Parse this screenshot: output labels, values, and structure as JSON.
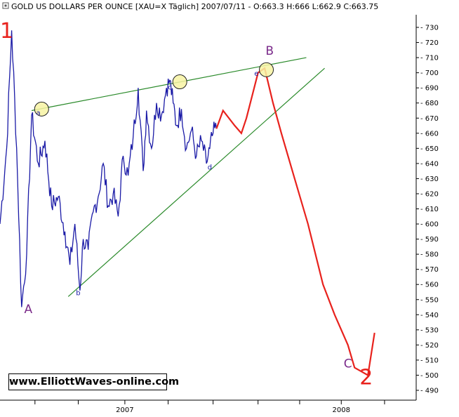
{
  "chart_data": {
    "type": "line",
    "title": "GOLD US DOLLARS PER OUNCE [XAU=X  Täglich] 2007/07/11 - O:663.3 H:666 L:662.9 C:663.75",
    "ylim": [
      485,
      737
    ],
    "yticks": [
      490,
      500,
      510,
      520,
      530,
      540,
      550,
      560,
      570,
      580,
      590,
      600,
      610,
      620,
      630,
      640,
      650,
      660,
      670,
      680,
      690,
      700,
      710,
      720,
      730
    ],
    "xlim": [
      0,
      25
    ],
    "xtick_positions": [
      2.1,
      4.7,
      7.5,
      10.1,
      12.8,
      15.5,
      18.0,
      20.5,
      23.1
    ],
    "xtick_labels": [
      {
        "x": 7.5,
        "text": "2007"
      },
      {
        "x": 20.5,
        "text": "2008"
      }
    ],
    "series": [
      {
        "color": "#1a1aa6",
        "x": [
          0,
          0.4,
          0.7,
          1.0,
          1.3,
          1.6,
          1.9,
          2.3,
          2.7,
          3.1,
          3.5,
          3.9,
          4.2,
          4.5,
          4.8,
          5.0,
          5.3,
          5.6,
          5.9,
          6.2,
          6.5,
          6.8,
          7.1,
          7.4,
          7.7,
          8.0,
          8.3,
          8.6,
          8.8,
          9.1,
          9.4,
          9.7,
          10.0,
          10.2,
          10.4,
          10.6,
          10.9,
          11.2,
          11.5,
          11.8,
          12.1,
          12.4,
          12.6,
          12.8,
          13.0
        ],
        "y": [
          600,
          650,
          728,
          650,
          545,
          580,
          672,
          640,
          655,
          612,
          618,
          595,
          573,
          600,
          556,
          590,
          583,
          608,
          618,
          640,
          612,
          620,
          605,
          645,
          632,
          658,
          690,
          635,
          675,
          650,
          680,
          672,
          690,
          695,
          680,
          665,
          676,
          650,
          662,
          645,
          655,
          640,
          650,
          660,
          663
        ]
      }
    ],
    "projection": {
      "color": "#e8221d",
      "x": [
        13.0,
        13.4,
        14.1,
        14.5,
        14.8,
        15.5,
        15.9,
        16.4,
        16.9,
        17.7,
        18.5,
        19.4,
        20.1,
        20.9,
        21.3,
        22.1,
        22.5
      ],
      "y": [
        663,
        675,
        665,
        660,
        670,
        700,
        703,
        680,
        660,
        630,
        600,
        560,
        540,
        520,
        505,
        500,
        528
      ]
    },
    "trendlines": [
      {
        "name": "upper",
        "color": "#2a8a2a",
        "x": [
          1.9,
          18.4
        ],
        "y": [
          675,
          710
        ]
      },
      {
        "name": "lower",
        "color": "#2a8a2a",
        "x": [
          4.1,
          19.5
        ],
        "y": [
          552,
          703
        ]
      }
    ],
    "markers": [
      {
        "x": 2.5,
        "y": 676
      },
      {
        "x": 10.8,
        "y": 694
      },
      {
        "x": 16.0,
        "y": 702
      }
    ],
    "point_labels": [
      {
        "text": "a",
        "x": 2.3,
        "y": 672
      },
      {
        "text": "b",
        "x": 4.7,
        "y": 553
      },
      {
        "text": "c",
        "x": 10.2,
        "y": 689
      },
      {
        "text": "d",
        "x": 12.6,
        "y": 636
      },
      {
        "text": "e",
        "x": 15.4,
        "y": 698
      }
    ],
    "wave_labels": [
      {
        "text": "1",
        "x": 0.4,
        "y": 723,
        "color": "#e8221d",
        "size": "big"
      },
      {
        "text": "A",
        "x": 1.7,
        "y": 541,
        "color": "#7a2a8a",
        "size": "mid"
      },
      {
        "text": "B",
        "x": 16.2,
        "y": 712,
        "color": "#7a2a8a",
        "size": "mid"
      },
      {
        "text": "C",
        "x": 20.9,
        "y": 505,
        "color": "#7a2a8a",
        "size": "mid"
      },
      {
        "text": "2",
        "x": 22.0,
        "y": 494,
        "color": "#e8221d",
        "size": "big"
      }
    ],
    "watermark": "www.ElliottWaves-online.com"
  },
  "icons": {
    "title_icon": "bullet-square-icon"
  }
}
